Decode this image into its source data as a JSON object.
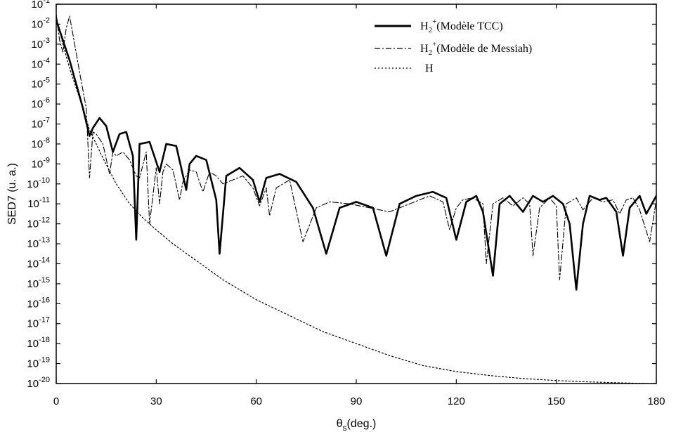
{
  "chart_data": {
    "type": "line",
    "xlabel": "θs(deg.)",
    "xlabel_main": "θ",
    "xlabel_sub": "s",
    "xlabel_rest": "(deg.)",
    "ylabel": "SED7 (u. a.)",
    "xlim": [
      0,
      180
    ],
    "ylim_exp": [
      -20,
      -1
    ],
    "y_scale": "log",
    "x_ticks": [
      0,
      30,
      60,
      90,
      120,
      150,
      180
    ],
    "y_tick_exponents": [
      -1,
      -2,
      -3,
      -4,
      -5,
      -6,
      -7,
      -8,
      -9,
      -10,
      -11,
      -12,
      -13,
      -14,
      -15,
      -16,
      -17,
      -18,
      -19,
      -20
    ],
    "grid": false,
    "legend_position": "top-right",
    "series": [
      {
        "name": "H2+(Modèle TCC)",
        "name_base": "H",
        "name_sub": "2",
        "name_sup": "+",
        "name_rest": "(Modèle TCC)",
        "style": "solid",
        "x": [
          0,
          2,
          4,
          6,
          8,
          10,
          11,
          13,
          15,
          17,
          19,
          21,
          23,
          24,
          25,
          28,
          31,
          33,
          36,
          39,
          40,
          42,
          45,
          48,
          49,
          51,
          55,
          59,
          61,
          63,
          67,
          72,
          77,
          81,
          85,
          90,
          95,
          99,
          103,
          108,
          113,
          117,
          120,
          123,
          126,
          128,
          131,
          133,
          136,
          140,
          143,
          146,
          149,
          152,
          154,
          156,
          158,
          160,
          163,
          165,
          168,
          170,
          172,
          175,
          177,
          180
        ],
        "y_exp": [
          -1.8,
          -2.8,
          -3.8,
          -5.0,
          -6.2,
          -7.6,
          -7.2,
          -6.7,
          -7.1,
          -8.4,
          -7.5,
          -7.4,
          -8.6,
          -12.8,
          -8.0,
          -7.9,
          -9.4,
          -8.0,
          -8.1,
          -10.3,
          -9.0,
          -8.6,
          -8.8,
          -10.8,
          -13.5,
          -9.6,
          -9.2,
          -9.8,
          -10.9,
          -9.7,
          -9.5,
          -9.9,
          -11.2,
          -13.5,
          -11.2,
          -10.9,
          -11.2,
          -13.6,
          -11.0,
          -10.6,
          -10.4,
          -10.7,
          -12.8,
          -10.9,
          -10.6,
          -11.4,
          -14.6,
          -11.0,
          -10.6,
          -11.4,
          -10.6,
          -10.9,
          -10.6,
          -11.0,
          -12.0,
          -15.3,
          -12.0,
          -10.6,
          -10.8,
          -10.7,
          -11.4,
          -13.6,
          -11.2,
          -10.6,
          -11.5,
          -10.6
        ]
      },
      {
        "name": "H2+(Modèle de Messiah)",
        "name_base": "H",
        "name_sub": "2",
        "name_sup": "+",
        "name_rest": "(Modèle de Messiah)",
        "style": "dashdot",
        "x": [
          0,
          1,
          2,
          3,
          4,
          5,
          7,
          9,
          10,
          11,
          12,
          14,
          16,
          17,
          18,
          20,
          22,
          24,
          25,
          27,
          28,
          30,
          31,
          32,
          33,
          35,
          37,
          38,
          40,
          42,
          44,
          46,
          48,
          50,
          53,
          56,
          59,
          61,
          63,
          64,
          66,
          70,
          74,
          78,
          82,
          88,
          94,
          100,
          106,
          112,
          116,
          118,
          120,
          122,
          125,
          128,
          129,
          131,
          134,
          137,
          140,
          142,
          143,
          145,
          148,
          150,
          151,
          153,
          156,
          158,
          161,
          164,
          167,
          169,
          171,
          173,
          175,
          178,
          180
        ],
        "y_exp": [
          -1.5,
          -2.8,
          -3.4,
          -2.2,
          -1.6,
          -2.5,
          -4.4,
          -6.2,
          -9.7,
          -7.4,
          -7.5,
          -8.0,
          -9.5,
          -8.4,
          -8.6,
          -8.4,
          -8.8,
          -9.6,
          -9.7,
          -8.4,
          -12.0,
          -9.2,
          -11.0,
          -9.4,
          -9.0,
          -9.3,
          -10.8,
          -9.9,
          -9.3,
          -9.4,
          -10.4,
          -9.4,
          -9.6,
          -10.0,
          -9.8,
          -9.6,
          -10.2,
          -11.1,
          -10.2,
          -11.6,
          -10.2,
          -9.8,
          -12.9,
          -11.2,
          -10.9,
          -11.0,
          -11.2,
          -11.4,
          -11.0,
          -10.6,
          -10.9,
          -12.3,
          -11.2,
          -10.8,
          -10.7,
          -11.0,
          -14.0,
          -11.0,
          -10.7,
          -11.1,
          -10.7,
          -11.0,
          -13.6,
          -11.2,
          -10.7,
          -11.1,
          -14.8,
          -11.0,
          -10.7,
          -11.3,
          -10.7,
          -10.9,
          -10.8,
          -11.5,
          -10.8,
          -10.7,
          -11.3,
          -12.9,
          -10.8
        ]
      },
      {
        "name": "H",
        "style": "dotted",
        "x": [
          0,
          2,
          4,
          6,
          8,
          10,
          14,
          18,
          22,
          26,
          30,
          35,
          40,
          45,
          50,
          60,
          70,
          80,
          90,
          100,
          110,
          120,
          130,
          140,
          150,
          160,
          170,
          178
        ],
        "y_exp": [
          -1.6,
          -3.0,
          -4.2,
          -5.2,
          -6.2,
          -7.3,
          -8.7,
          -10.0,
          -11.0,
          -11.7,
          -12.3,
          -13.0,
          -13.6,
          -14.2,
          -14.8,
          -15.8,
          -16.6,
          -17.4,
          -18.0,
          -18.6,
          -19.1,
          -19.4,
          -19.6,
          -19.75,
          -19.85,
          -19.92,
          -19.97,
          -20.0
        ]
      }
    ]
  }
}
